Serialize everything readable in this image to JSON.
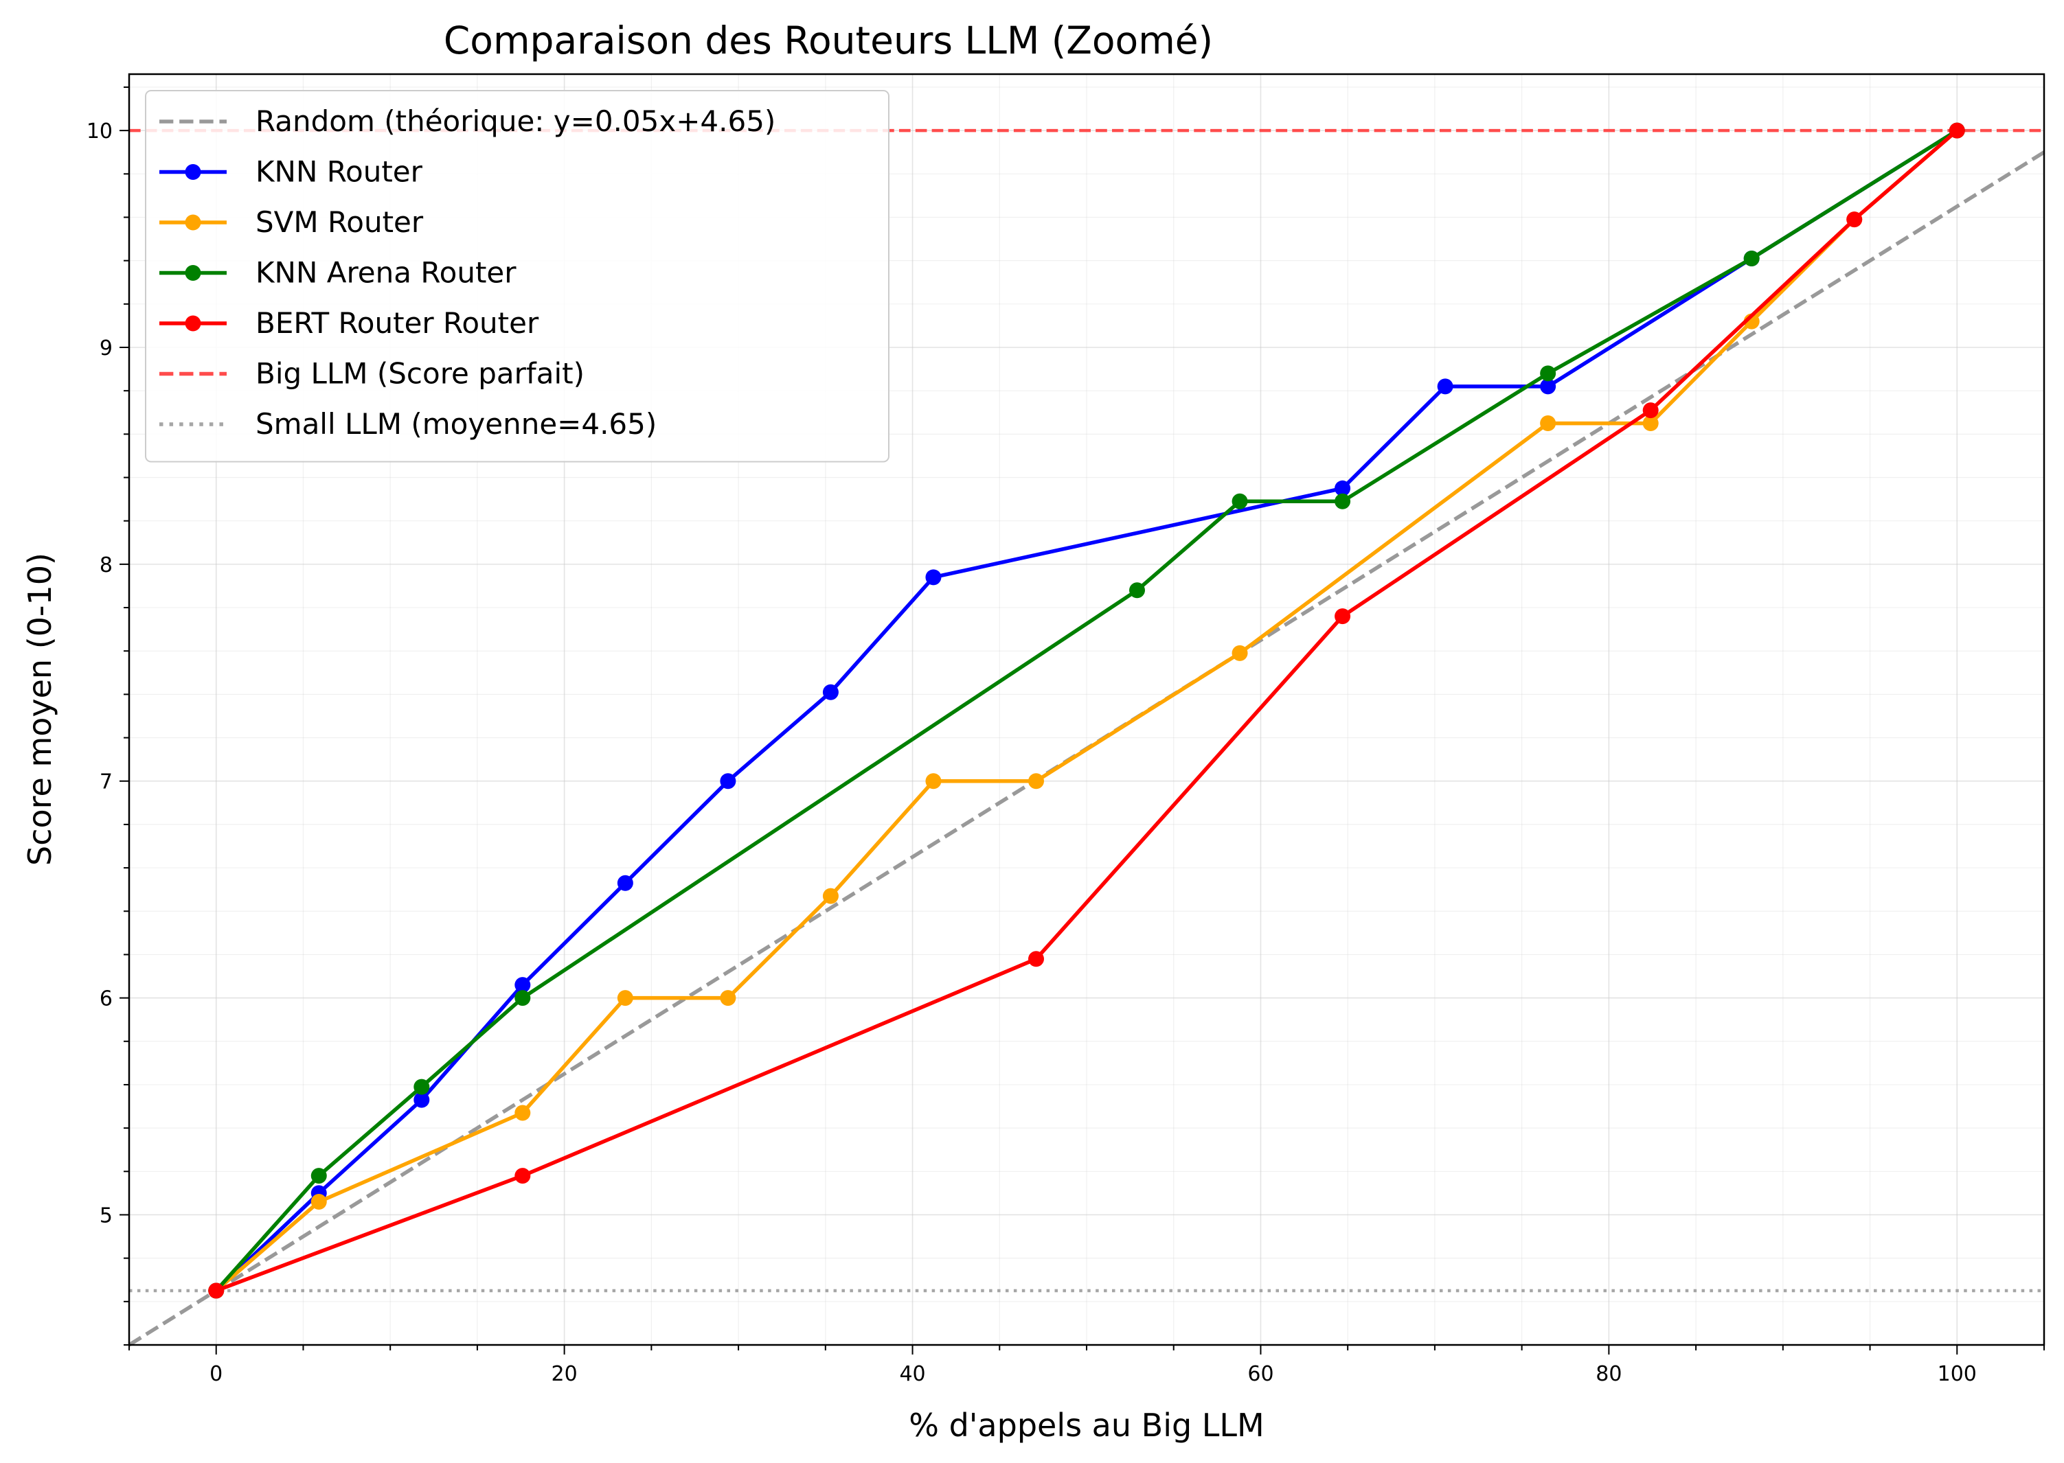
{
  "chart_data": {
    "type": "line",
    "title": "Comparaison des Routeurs LLM (Zoomé)",
    "xlabel": "% d'appels au Big LLM",
    "ylabel": "Score moyen (0-10)",
    "xlim": [
      -5,
      105
    ],
    "ylim": [
      4.4,
      10.26
    ],
    "xticks": [
      0,
      20,
      40,
      60,
      80,
      100
    ],
    "yticks": [
      5,
      6,
      7,
      8,
      9,
      10
    ],
    "grid": true,
    "legend_position": "top-left",
    "series": [
      {
        "name": "Random (théorique: y=0.05x+4.65)",
        "color": "#999999",
        "style": "dashed",
        "markers": false,
        "x": [
          -5,
          105
        ],
        "y": [
          4.4,
          9.9
        ]
      },
      {
        "name": "KNN Router",
        "color": "#0000ff",
        "style": "solid",
        "markers": true,
        "x": [
          0,
          5.9,
          11.8,
          17.6,
          23.5,
          29.4,
          35.3,
          41.2,
          64.7,
          70.6,
          76.5,
          88.2,
          100
        ],
        "y": [
          4.65,
          5.1,
          5.53,
          6.06,
          6.53,
          7.0,
          7.41,
          7.94,
          8.35,
          8.82,
          8.82,
          9.41,
          10.0
        ]
      },
      {
        "name": "SVM Router",
        "color": "#ffa500",
        "style": "solid",
        "markers": true,
        "x": [
          0,
          5.9,
          17.6,
          23.5,
          29.4,
          35.3,
          41.2,
          47.1,
          58.8,
          76.5,
          82.4,
          88.2,
          94.1,
          100
        ],
        "y": [
          4.65,
          5.06,
          5.47,
          6.0,
          6.0,
          6.47,
          7.0,
          7.0,
          7.59,
          8.65,
          8.65,
          9.12,
          9.59,
          10.0
        ]
      },
      {
        "name": "KNN Arena Router",
        "color": "#008000",
        "style": "solid",
        "markers": true,
        "x": [
          0,
          5.9,
          11.8,
          17.6,
          52.9,
          58.8,
          64.7,
          76.5,
          88.2,
          100
        ],
        "y": [
          4.65,
          5.18,
          5.59,
          6.0,
          7.88,
          8.29,
          8.29,
          8.88,
          9.41,
          10.0
        ]
      },
      {
        "name": "BERT Router Router",
        "color": "#ff0000",
        "style": "solid",
        "markers": true,
        "x": [
          0,
          17.6,
          47.1,
          64.7,
          82.4,
          94.1,
          100
        ],
        "y": [
          4.65,
          5.18,
          6.18,
          7.76,
          8.71,
          9.59,
          10.0
        ]
      },
      {
        "name": "Big LLM (Score parfait)",
        "color": "#ff4c4c",
        "style": "dashed",
        "markers": false,
        "hline": 10.0
      },
      {
        "name": "Small LLM (moyenne=4.65)",
        "color": "#a6a6a6",
        "style": "dotted",
        "markers": false,
        "hline": 4.65
      }
    ]
  }
}
